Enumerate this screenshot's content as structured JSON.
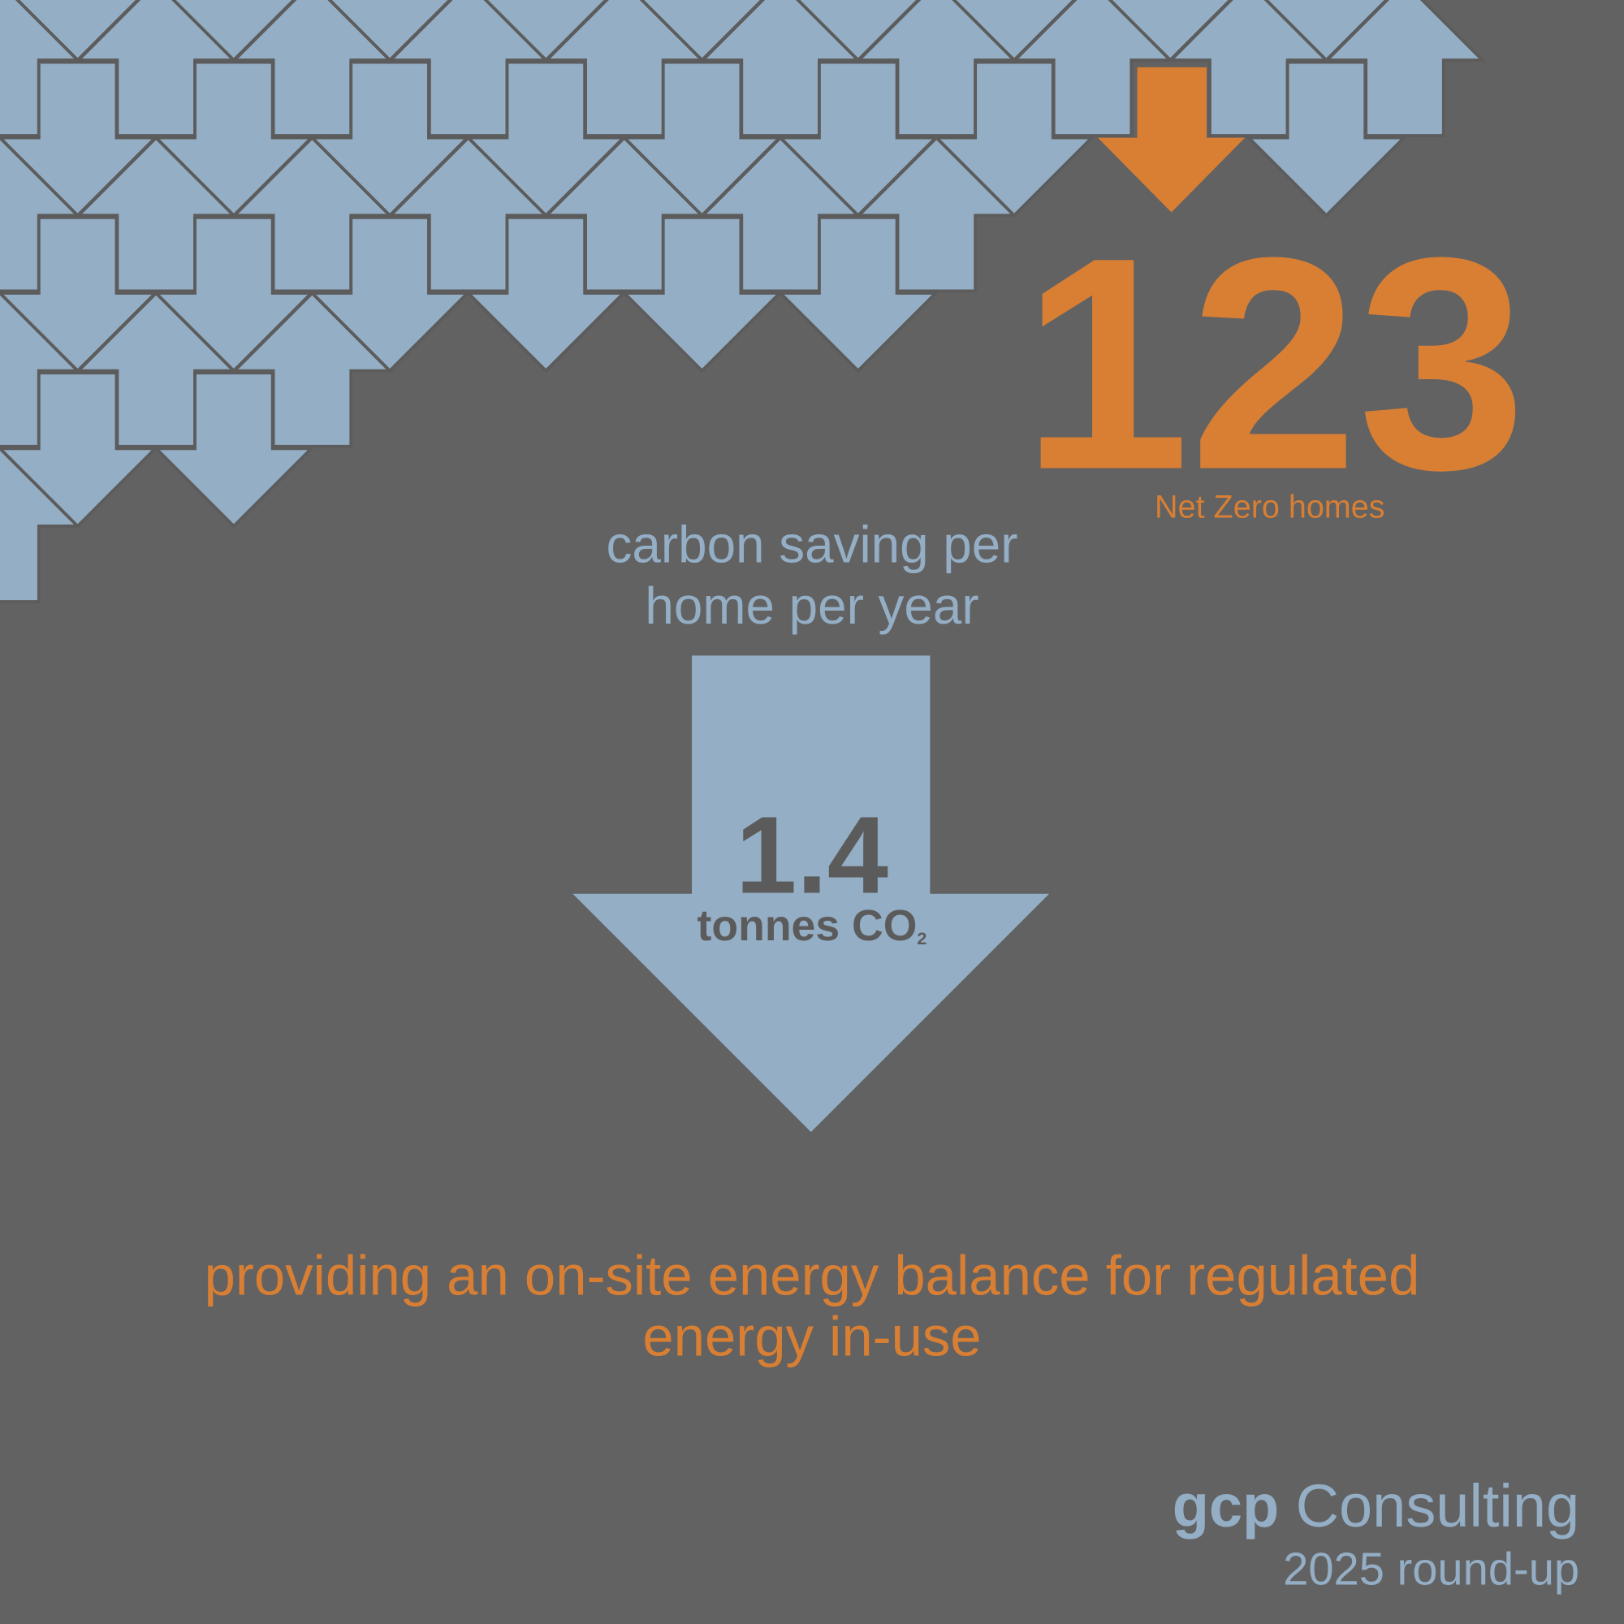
{
  "headline": {
    "number": "123",
    "label": "Net Zero homes"
  },
  "saving": {
    "heading": [
      "carbon saving per",
      "home per year"
    ],
    "value": "1.4",
    "unit": "tonnes CO",
    "unit_subscript": "2"
  },
  "statement": [
    "providing an on-site energy balance for regulated",
    "energy in-use"
  ],
  "brand": {
    "name_bold": "gcp",
    "name": "Consulting",
    "subtitle": "2025 round-up"
  }
}
